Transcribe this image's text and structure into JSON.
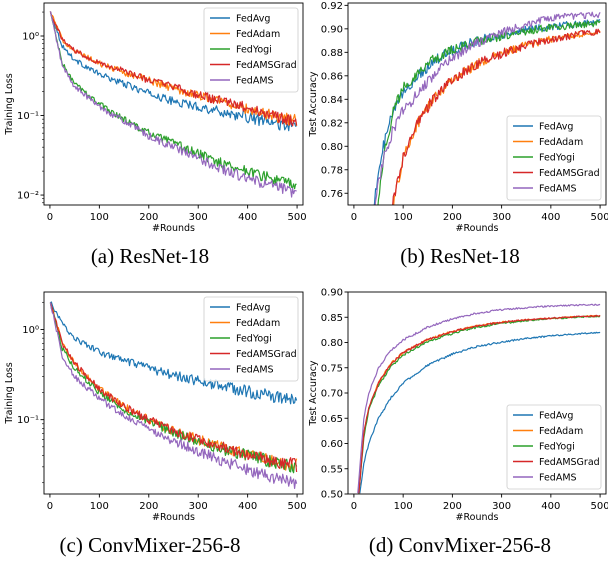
{
  "colors": {
    "FedAvg": "#1f77b4",
    "FedAdam": "#ff7f0e",
    "FedYogi": "#2ca02c",
    "FedAMSGrad": "#d62728",
    "FedAMS": "#9467bd"
  },
  "captions": [
    "(a) ResNet-18",
    "(b) ResNet-18",
    "(c) ConvMixer-256-8",
    "(d) ConvMixer-256-8"
  ],
  "chart_data": [
    {
      "type": "line",
      "caption": "(a) ResNet-18",
      "xlabel": "#Rounds",
      "ylabel": "Training Loss",
      "yscale": "log",
      "xlim": [
        -12,
        512
      ],
      "ylim": [
        0.0075,
        2.6
      ],
      "xticks": [
        0,
        100,
        200,
        300,
        400,
        500
      ],
      "yticks": [
        0.01,
        0.1,
        1
      ],
      "ytick_labels": [
        "10⁻²",
        "10⁻¹",
        "10⁰"
      ],
      "legend_position": "top-right",
      "series": [
        {
          "name": "FedAvg",
          "x": [
            1,
            25,
            50,
            100,
            150,
            200,
            250,
            300,
            350,
            400,
            450,
            500
          ],
          "y": [
            2.0,
            0.75,
            0.5,
            0.33,
            0.25,
            0.19,
            0.15,
            0.13,
            0.11,
            0.095,
            0.08,
            0.072
          ]
        },
        {
          "name": "FedAdam",
          "x": [
            1,
            25,
            50,
            100,
            150,
            200,
            250,
            300,
            350,
            400,
            450,
            500
          ],
          "y": [
            2.0,
            0.9,
            0.65,
            0.45,
            0.35,
            0.28,
            0.22,
            0.18,
            0.15,
            0.12,
            0.1,
            0.085
          ]
        },
        {
          "name": "FedYogi",
          "x": [
            1,
            25,
            50,
            100,
            150,
            200,
            250,
            300,
            350,
            400,
            450,
            500
          ],
          "y": [
            2.0,
            0.45,
            0.25,
            0.14,
            0.09,
            0.06,
            0.045,
            0.033,
            0.025,
            0.02,
            0.016,
            0.013
          ]
        },
        {
          "name": "FedAMSGrad",
          "x": [
            1,
            25,
            50,
            100,
            150,
            200,
            250,
            300,
            350,
            400,
            450,
            500
          ],
          "y": [
            2.0,
            0.9,
            0.66,
            0.46,
            0.36,
            0.28,
            0.23,
            0.18,
            0.15,
            0.125,
            0.1,
            0.085
          ]
        },
        {
          "name": "FedAMS",
          "x": [
            1,
            25,
            50,
            100,
            150,
            200,
            250,
            300,
            350,
            400,
            450,
            500
          ],
          "y": [
            2.0,
            0.42,
            0.23,
            0.13,
            0.085,
            0.055,
            0.04,
            0.029,
            0.021,
            0.016,
            0.013,
            0.0105
          ]
        }
      ]
    },
    {
      "type": "line",
      "caption": "(b) ResNet-18",
      "xlabel": "#Rounds",
      "ylabel": "Test Accuracy",
      "yscale": "linear",
      "xlim": [
        -12,
        512
      ],
      "ylim": [
        0.75,
        0.922
      ],
      "xticks": [
        0,
        100,
        200,
        300,
        400,
        500
      ],
      "yticks": [
        0.76,
        0.78,
        0.8,
        0.82,
        0.84,
        0.86,
        0.88,
        0.9,
        0.92
      ],
      "ytick_labels": [
        "0.76",
        "0.78",
        "0.80",
        "0.82",
        "0.84",
        "0.86",
        "0.88",
        "0.90",
        "0.92"
      ],
      "legend_position": "lower-right",
      "series": [
        {
          "name": "FedAvg",
          "x": [
            40,
            60,
            80,
            100,
            130,
            160,
            200,
            250,
            300,
            350,
            400,
            450,
            500
          ],
          "y": [
            0.75,
            0.8,
            0.83,
            0.845,
            0.86,
            0.872,
            0.882,
            0.89,
            0.895,
            0.899,
            0.902,
            0.904,
            0.906
          ]
        },
        {
          "name": "FedAdam",
          "x": [
            80,
            100,
            130,
            160,
            200,
            250,
            300,
            350,
            400,
            450,
            500
          ],
          "y": [
            0.75,
            0.79,
            0.82,
            0.84,
            0.857,
            0.87,
            0.879,
            0.886,
            0.891,
            0.895,
            0.897
          ]
        },
        {
          "name": "FedYogi",
          "x": [
            48,
            60,
            80,
            100,
            130,
            160,
            200,
            250,
            300,
            350,
            400,
            450,
            500
          ],
          "y": [
            0.75,
            0.79,
            0.83,
            0.85,
            0.863,
            0.873,
            0.882,
            0.889,
            0.894,
            0.898,
            0.901,
            0.903,
            0.905
          ]
        },
        {
          "name": "FedAMSGrad",
          "x": [
            78,
            100,
            130,
            160,
            200,
            250,
            300,
            350,
            400,
            450,
            500
          ],
          "y": [
            0.75,
            0.79,
            0.82,
            0.84,
            0.857,
            0.87,
            0.879,
            0.886,
            0.891,
            0.895,
            0.898
          ]
        },
        {
          "name": "FedAMS",
          "x": [
            42,
            60,
            80,
            100,
            130,
            160,
            200,
            250,
            300,
            350,
            400,
            450,
            500
          ],
          "y": [
            0.75,
            0.79,
            0.815,
            0.83,
            0.845,
            0.86,
            0.875,
            0.888,
            0.897,
            0.904,
            0.909,
            0.911,
            0.912
          ]
        }
      ]
    },
    {
      "type": "line",
      "caption": "(c) ConvMixer-256-8",
      "xlabel": "#Rounds",
      "ylabel": "Training Loss",
      "yscale": "log",
      "xlim": [
        -12,
        512
      ],
      "ylim": [
        0.015,
        2.6
      ],
      "xticks": [
        0,
        100,
        200,
        300,
        400,
        500
      ],
      "yticks": [
        0.1,
        1
      ],
      "ytick_labels": [
        "10⁻¹",
        "10⁰"
      ],
      "legend_position": "top-right",
      "series": [
        {
          "name": "FedAvg",
          "x": [
            1,
            25,
            50,
            100,
            150,
            200,
            250,
            300,
            350,
            400,
            450,
            500
          ],
          "y": [
            2.0,
            1.15,
            0.8,
            0.56,
            0.45,
            0.37,
            0.31,
            0.27,
            0.235,
            0.205,
            0.18,
            0.165
          ]
        },
        {
          "name": "FedAdam",
          "x": [
            1,
            25,
            50,
            100,
            150,
            200,
            250,
            300,
            350,
            400,
            450,
            500
          ],
          "y": [
            2.0,
            0.7,
            0.42,
            0.22,
            0.14,
            0.1,
            0.075,
            0.06,
            0.049,
            0.041,
            0.035,
            0.031
          ]
        },
        {
          "name": "FedYogi",
          "x": [
            1,
            25,
            50,
            100,
            150,
            200,
            250,
            300,
            350,
            400,
            450,
            500
          ],
          "y": [
            2.0,
            0.62,
            0.37,
            0.2,
            0.13,
            0.095,
            0.072,
            0.058,
            0.047,
            0.04,
            0.034,
            0.03
          ]
        },
        {
          "name": "FedAMSGrad",
          "x": [
            1,
            25,
            50,
            100,
            150,
            200,
            250,
            300,
            350,
            400,
            450,
            500
          ],
          "y": [
            2.0,
            0.7,
            0.42,
            0.22,
            0.14,
            0.1,
            0.075,
            0.06,
            0.049,
            0.041,
            0.035,
            0.031
          ]
        },
        {
          "name": "FedAMS",
          "x": [
            1,
            25,
            50,
            100,
            150,
            200,
            250,
            300,
            350,
            400,
            450,
            500
          ],
          "y": [
            2.0,
            0.5,
            0.3,
            0.17,
            0.11,
            0.078,
            0.058,
            0.045,
            0.035,
            0.028,
            0.023,
            0.019
          ]
        }
      ]
    },
    {
      "type": "line",
      "caption": "(d) ConvMixer-256-8",
      "xlabel": "#Rounds",
      "ylabel": "Test Accuracy",
      "yscale": "linear",
      "xlim": [
        -12,
        512
      ],
      "ylim": [
        0.5,
        0.9
      ],
      "xticks": [
        0,
        100,
        200,
        300,
        400,
        500
      ],
      "yticks": [
        0.5,
        0.55,
        0.6,
        0.65,
        0.7,
        0.75,
        0.8,
        0.85,
        0.9
      ],
      "ytick_labels": [
        "0.50",
        "0.55",
        "0.60",
        "0.65",
        "0.70",
        "0.75",
        "0.80",
        "0.85",
        "0.90"
      ],
      "legend_position": "lower-right",
      "series": [
        {
          "name": "FedAvg",
          "x": [
            12,
            20,
            30,
            50,
            75,
            100,
            150,
            200,
            250,
            300,
            350,
            400,
            450,
            500
          ],
          "y": [
            0.5,
            0.56,
            0.6,
            0.65,
            0.69,
            0.72,
            0.755,
            0.777,
            0.792,
            0.801,
            0.808,
            0.813,
            0.817,
            0.82
          ]
        },
        {
          "name": "FedAdam",
          "x": [
            10,
            20,
            30,
            50,
            75,
            100,
            150,
            200,
            250,
            300,
            350,
            400,
            450,
            500
          ],
          "y": [
            0.5,
            0.62,
            0.67,
            0.72,
            0.758,
            0.78,
            0.806,
            0.822,
            0.833,
            0.84,
            0.845,
            0.848,
            0.851,
            0.853
          ]
        },
        {
          "name": "FedYogi",
          "x": [
            10,
            20,
            30,
            50,
            75,
            100,
            150,
            200,
            250,
            300,
            350,
            400,
            450,
            500
          ],
          "y": [
            0.5,
            0.61,
            0.665,
            0.715,
            0.752,
            0.775,
            0.802,
            0.818,
            0.83,
            0.838,
            0.843,
            0.847,
            0.85,
            0.852
          ]
        },
        {
          "name": "FedAMSGrad",
          "x": [
            10,
            20,
            30,
            50,
            75,
            100,
            150,
            200,
            250,
            300,
            350,
            400,
            450,
            500
          ],
          "y": [
            0.5,
            0.62,
            0.67,
            0.72,
            0.758,
            0.78,
            0.806,
            0.822,
            0.833,
            0.84,
            0.845,
            0.848,
            0.851,
            0.853
          ]
        },
        {
          "name": "FedAMS",
          "x": [
            8,
            20,
            30,
            50,
            75,
            100,
            150,
            200,
            250,
            300,
            350,
            400,
            450,
            500
          ],
          "y": [
            0.5,
            0.65,
            0.7,
            0.75,
            0.785,
            0.805,
            0.83,
            0.847,
            0.858,
            0.865,
            0.869,
            0.872,
            0.874,
            0.875
          ]
        }
      ]
    }
  ]
}
